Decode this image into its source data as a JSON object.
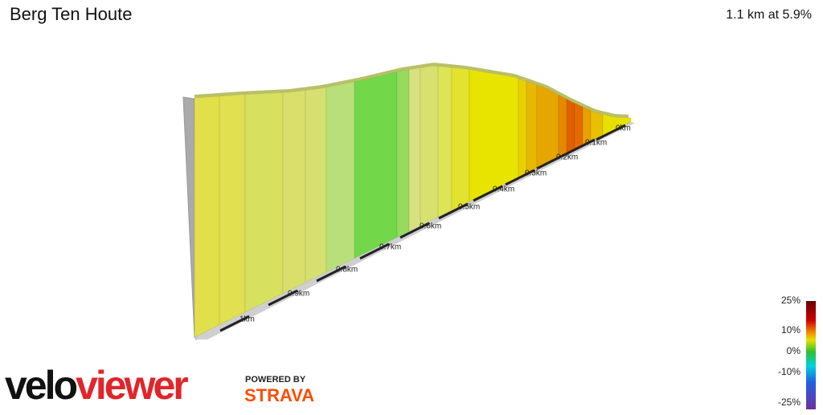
{
  "header": {
    "title": "Berg Ten Houte",
    "summary": "1.1 km at 5.9%"
  },
  "profile": {
    "distance_labels": [
      "0km",
      "0.1km",
      "0.2km",
      "0.3km",
      "0.4km",
      "0.5km",
      "0.6km",
      "0.7km",
      "0.8km",
      "0.9km",
      "1km"
    ]
  },
  "legend": {
    "labels": [
      "25%",
      "10%",
      "0%",
      "-10%",
      "-25%"
    ]
  },
  "branding": {
    "logo_start": "velo",
    "logo_end": "viewer",
    "powered_by": "POWERED BY",
    "partner": "STRAVA"
  }
}
